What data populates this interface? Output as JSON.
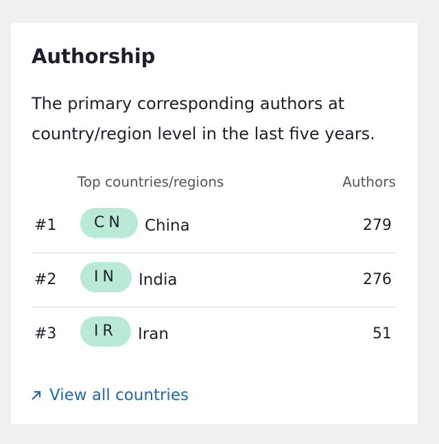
{
  "card": {
    "title": "Authorship",
    "description": [
      "The primary corresponding authors at",
      "country/region level in the last five years."
    ],
    "table": {
      "columns": [
        "Top countries/regions",
        "Authors"
      ],
      "rows": [
        {
          "rank": "#1",
          "code": "CN",
          "country": "China",
          "authors": 279
        },
        {
          "rank": "#2",
          "code": "IN",
          "country": "India",
          "authors": 276
        },
        {
          "rank": "#3",
          "code": "IR",
          "country": "Iran",
          "authors": 51
        }
      ]
    },
    "link": "View all countries"
  }
}
